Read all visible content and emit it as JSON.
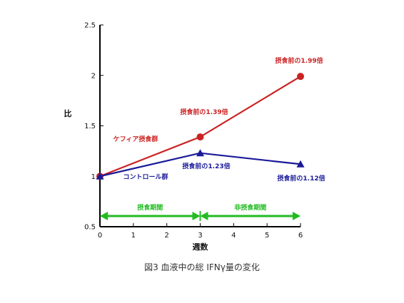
{
  "caption": "図3 血液中の総 IFNγ量の変化",
  "chart_data": {
    "type": "line",
    "x": [
      0,
      3,
      6
    ],
    "xlabel": "週数",
    "ylabel": "比",
    "xlim": [
      0,
      6
    ],
    "ylim": [
      0.5,
      2.5
    ],
    "xticks": [
      "0",
      "1",
      "2",
      "3",
      "4",
      "5",
      "6"
    ],
    "yticks": [
      "0.5",
      "1",
      "1.5",
      "2",
      "2.5"
    ],
    "grid": false,
    "series": [
      {
        "name": "ケフィア摂食群",
        "values": [
          1.0,
          1.39,
          1.99
        ],
        "color": "#cc2222",
        "marker": "circle"
      },
      {
        "name": "コントロール群",
        "values": [
          1.0,
          1.23,
          1.12
        ],
        "color": "#1a1a99",
        "marker": "triangle"
      }
    ],
    "annotations": [
      {
        "text": "摂食前の1.99倍",
        "series": 0,
        "color": "#cc2222"
      },
      {
        "text": "摂食前の1.39倍",
        "series": 0,
        "color": "#cc2222"
      },
      {
        "text": "摂食前の1.23倍",
        "series": 1,
        "color": "#1a1a99"
      },
      {
        "text": "摂食前の1.12倍",
        "series": 1,
        "color": "#1a1a99"
      }
    ],
    "periods": [
      {
        "label": "摂食期間",
        "from": 0,
        "to": 3,
        "color": "#22bb22"
      },
      {
        "label": "非摂食期間",
        "from": 3,
        "to": 6,
        "color": "#22bb22"
      }
    ]
  }
}
